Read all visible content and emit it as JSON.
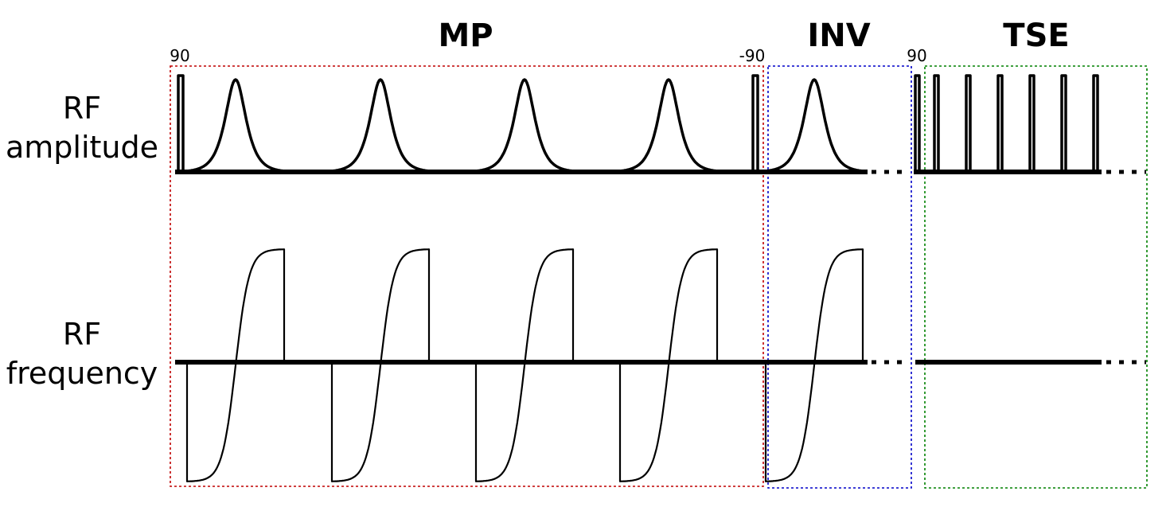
{
  "row_labels": {
    "amplitude": [
      "RF",
      "amplitude"
    ],
    "frequency": [
      "RF",
      "frequency"
    ]
  },
  "sections": [
    {
      "key": "mp",
      "title": "MP",
      "color": "#c00000"
    },
    {
      "key": "inv",
      "title": "INV",
      "color": "#0000c8"
    },
    {
      "key": "tse",
      "title": "TSE",
      "color": "#008000"
    }
  ],
  "flip_angles": {
    "mp_start": "90",
    "mp_end": "-90",
    "tse_start": "90"
  },
  "pulse_counts": {
    "mp_adiabatic": 4,
    "inv_adiabatic": 1,
    "tse_refocusing": 6
  }
}
